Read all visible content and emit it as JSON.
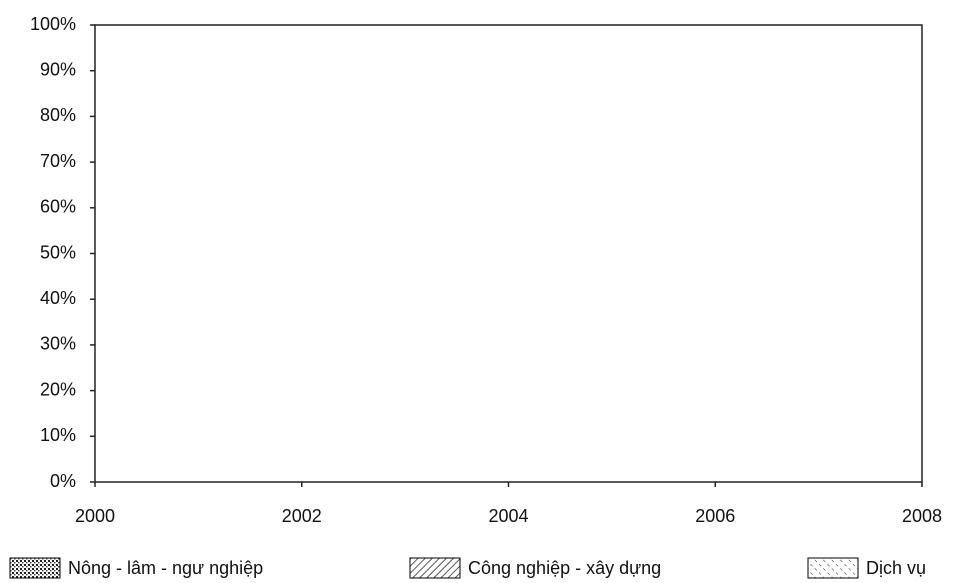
{
  "chart_data": {
    "type": "area",
    "xlim": [
      2000,
      2008
    ],
    "xticks": [
      2000,
      2002,
      2004,
      2006,
      2008
    ],
    "ylim": [
      0,
      100
    ],
    "yticks": [
      {
        "value": 0,
        "label": "0%"
      },
      {
        "value": 10,
        "label": "10%"
      },
      {
        "value": 20,
        "label": "20%"
      },
      {
        "value": 30,
        "label": "30%"
      },
      {
        "value": 40,
        "label": "40%"
      },
      {
        "value": 50,
        "label": "50%"
      },
      {
        "value": 60,
        "label": "60%"
      },
      {
        "value": 70,
        "label": "70%"
      },
      {
        "value": 80,
        "label": "80%"
      },
      {
        "value": 90,
        "label": "90%"
      },
      {
        "value": 100,
        "label": "100%"
      }
    ],
    "series": [
      {
        "name": "Nông - lâm - ngư nghiệp",
        "pattern": "dots",
        "color": "#000000"
      },
      {
        "name": "Công nghiệp - xây dựng",
        "pattern": "hatch-forward",
        "color": "#000000"
      },
      {
        "name": "Dịch vụ",
        "pattern": "hatch-back",
        "color": "#000000"
      }
    ],
    "grid": false,
    "legend": "bottom"
  }
}
